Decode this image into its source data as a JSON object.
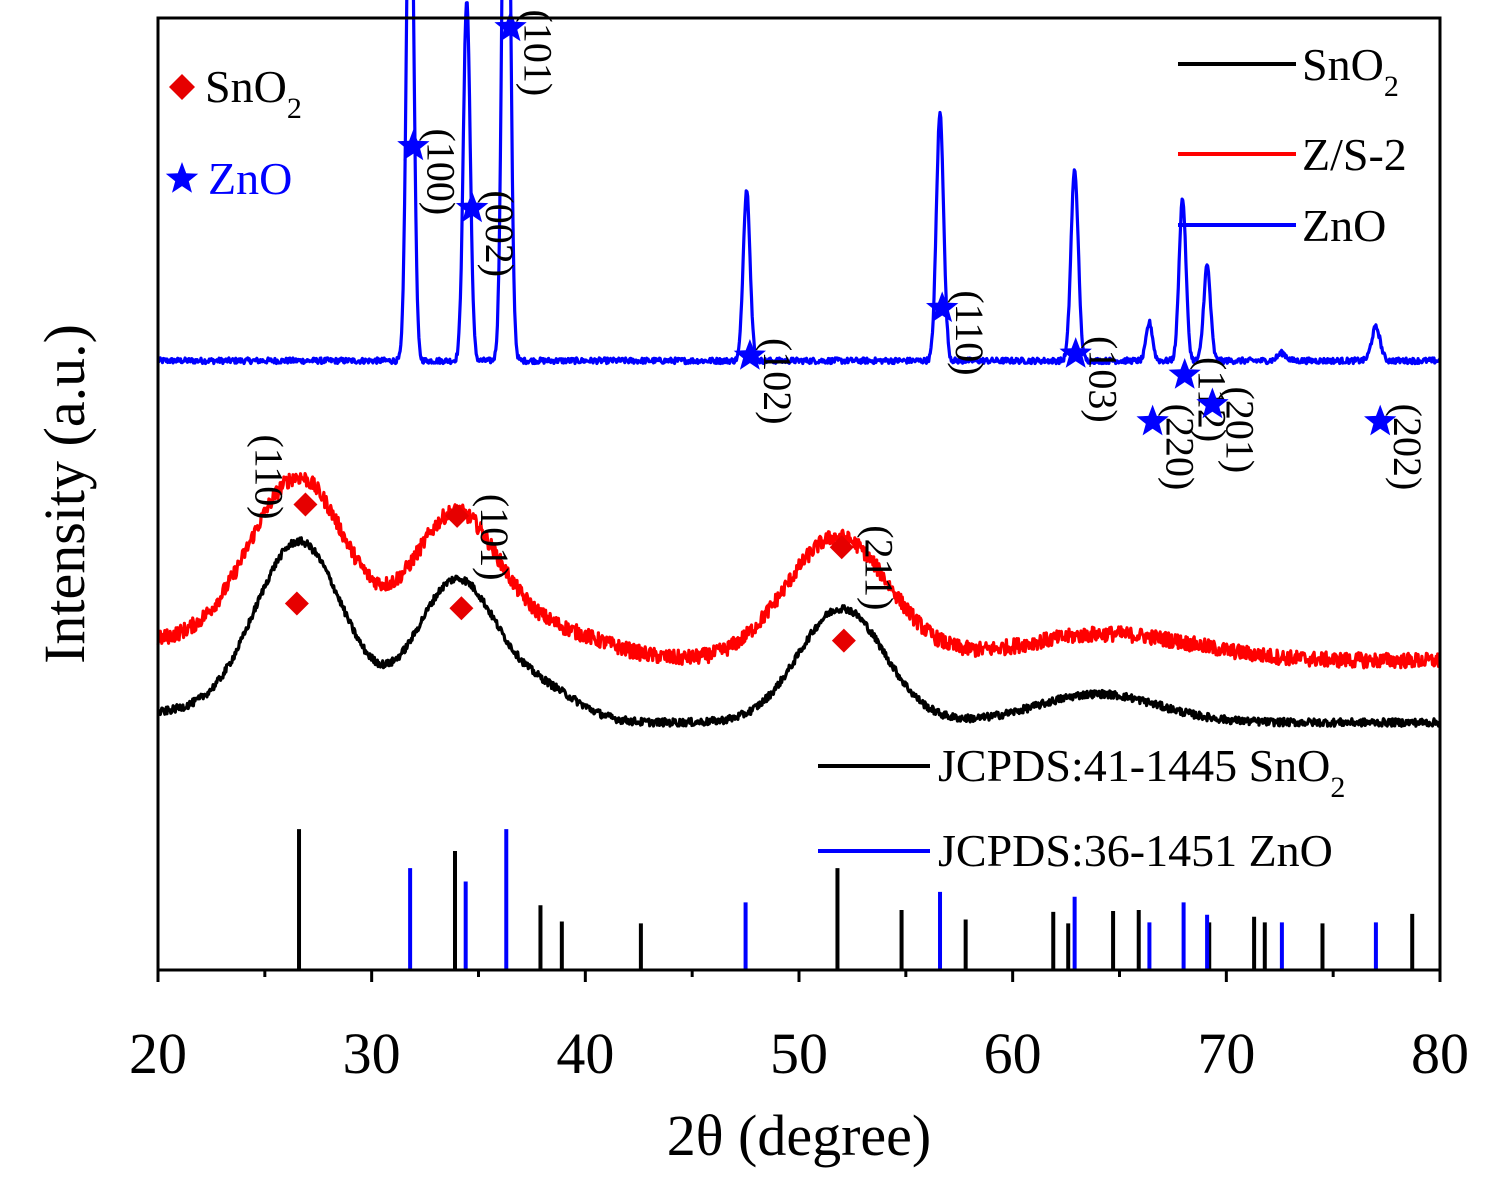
{
  "chart_data": {
    "type": "line",
    "title": "",
    "xlabel": "2θ (degree)",
    "ylabel": "Intensity (a.u.)",
    "xlim": [
      20,
      80
    ],
    "xticks": [
      20,
      30,
      40,
      50,
      60,
      70,
      80
    ],
    "grid": false,
    "colors": {
      "sno2": "#000000",
      "zs2": "#ff0000",
      "zno": "#0000ff",
      "diamond": "#e60000",
      "star": "#0000ff",
      "axis": "#000000"
    },
    "legend": {
      "position": "top-right",
      "entries": [
        {
          "label_main": "SnO",
          "label_sub": "2",
          "color": "#000000"
        },
        {
          "label_main": "Z/S-2",
          "label_sub": "",
          "color": "#ff0000"
        },
        {
          "label_main": "ZnO",
          "label_sub": "",
          "color": "#0000ff"
        }
      ]
    },
    "marker_legend": {
      "position": "top-left",
      "entries": [
        {
          "symbol": "diamond",
          "label_main": "SnO",
          "label_sub": "2",
          "color": "#e60000"
        },
        {
          "symbol": "star",
          "label_main": "ZnO",
          "label_sub": "",
          "color": "#0000ff"
        }
      ]
    },
    "reference_legend": {
      "position": "lower-right",
      "entries": [
        {
          "label_main": "JCPDS:41-1445 SnO",
          "label_sub": "2",
          "color": "#000000"
        },
        {
          "label_main": "JCPDS:36-1451 ZnO",
          "label_sub": "",
          "color": "#0000ff"
        }
      ]
    },
    "series": [
      {
        "name": "ZnO",
        "color": "#0000ff",
        "baseline": 0.64,
        "noise": 0.003,
        "peaks": [
          [
            31.8,
            0.62,
            0.16
          ],
          [
            34.45,
            0.38,
            0.16
          ],
          [
            36.3,
            0.8,
            0.17
          ],
          [
            47.55,
            0.18,
            0.16
          ],
          [
            56.6,
            0.26,
            0.17
          ],
          [
            62.9,
            0.2,
            0.17
          ],
          [
            66.4,
            0.04,
            0.15
          ],
          [
            67.95,
            0.17,
            0.16
          ],
          [
            69.1,
            0.1,
            0.16
          ],
          [
            72.6,
            0.008,
            0.2
          ],
          [
            77.0,
            0.035,
            0.2
          ]
        ]
      },
      {
        "name": "Z/S-2",
        "color": "#ff0000",
        "baseline": 0.325,
        "noise": 0.008,
        "peaks": [
          [
            20.5,
            0.02,
            3.0
          ],
          [
            26.6,
            0.19,
            2.3
          ],
          [
            33.9,
            0.15,
            2.0
          ],
          [
            38.5,
            0.03,
            2.5
          ],
          [
            51.8,
            0.13,
            2.4
          ],
          [
            64.5,
            0.028,
            4.0
          ]
        ]
      },
      {
        "name": "SnO2",
        "color": "#000000",
        "baseline": 0.26,
        "noise": 0.004,
        "peaks": [
          [
            20.8,
            0.01,
            2.0
          ],
          [
            26.6,
            0.19,
            2.1
          ],
          [
            34.0,
            0.15,
            1.9
          ],
          [
            38.2,
            0.03,
            1.6
          ],
          [
            52.0,
            0.12,
            2.0
          ],
          [
            64.0,
            0.03,
            2.8
          ]
        ]
      }
    ],
    "zno_markers": [
      {
        "x": 31.95,
        "y": 0.865,
        "label": "(100)"
      },
      {
        "x": 34.7,
        "y": 0.8,
        "label": "(002)"
      },
      {
        "x": 36.5,
        "y": 0.99,
        "label": "(101)"
      },
      {
        "x": 47.7,
        "y": 0.645,
        "label": "(102)"
      },
      {
        "x": 56.7,
        "y": 0.695,
        "label": "(110)"
      },
      {
        "x": 62.95,
        "y": 0.647,
        "label": "(103)"
      },
      {
        "x": 66.55,
        "y": 0.576,
        "label": "(220)"
      },
      {
        "x": 68.05,
        "y": 0.625,
        "label": "(112)"
      },
      {
        "x": 69.35,
        "y": 0.594,
        "label": "(201)"
      },
      {
        "x": 77.2,
        "y": 0.576,
        "label": "(202)"
      }
    ],
    "sno2_markers": [
      {
        "x": 26.9,
        "y": 0.489,
        "label": "(110)"
      },
      {
        "x": 34.0,
        "y": 0.477,
        "label": "(101)"
      },
      {
        "x": 52.0,
        "y": 0.444,
        "label": "(211)"
      },
      {
        "x": 26.5,
        "y": 0.385,
        "label": ""
      },
      {
        "x": 34.2,
        "y": 0.38,
        "label": ""
      },
      {
        "x": 52.1,
        "y": 0.346,
        "label": ""
      }
    ],
    "reference_sno2": [
      [
        26.6,
        0.148
      ],
      [
        33.9,
        0.125
      ],
      [
        37.9,
        0.068
      ],
      [
        38.9,
        0.051
      ],
      [
        42.6,
        0.049
      ],
      [
        51.8,
        0.107
      ],
      [
        54.8,
        0.063
      ],
      [
        57.8,
        0.053
      ],
      [
        61.9,
        0.061
      ],
      [
        62.6,
        0.049
      ],
      [
        64.7,
        0.062
      ],
      [
        65.9,
        0.063
      ],
      [
        69.2,
        0.05
      ],
      [
        71.3,
        0.056
      ],
      [
        71.8,
        0.05
      ],
      [
        74.5,
        0.049
      ],
      [
        78.7,
        0.059
      ]
    ],
    "reference_zno": [
      [
        31.8,
        0.107
      ],
      [
        34.4,
        0.093
      ],
      [
        36.3,
        0.148
      ],
      [
        47.5,
        0.071
      ],
      [
        56.6,
        0.082
      ],
      [
        62.9,
        0.077
      ],
      [
        66.4,
        0.05
      ],
      [
        68.0,
        0.071
      ],
      [
        69.1,
        0.058
      ],
      [
        72.6,
        0.05
      ],
      [
        77.0,
        0.05
      ]
    ]
  }
}
